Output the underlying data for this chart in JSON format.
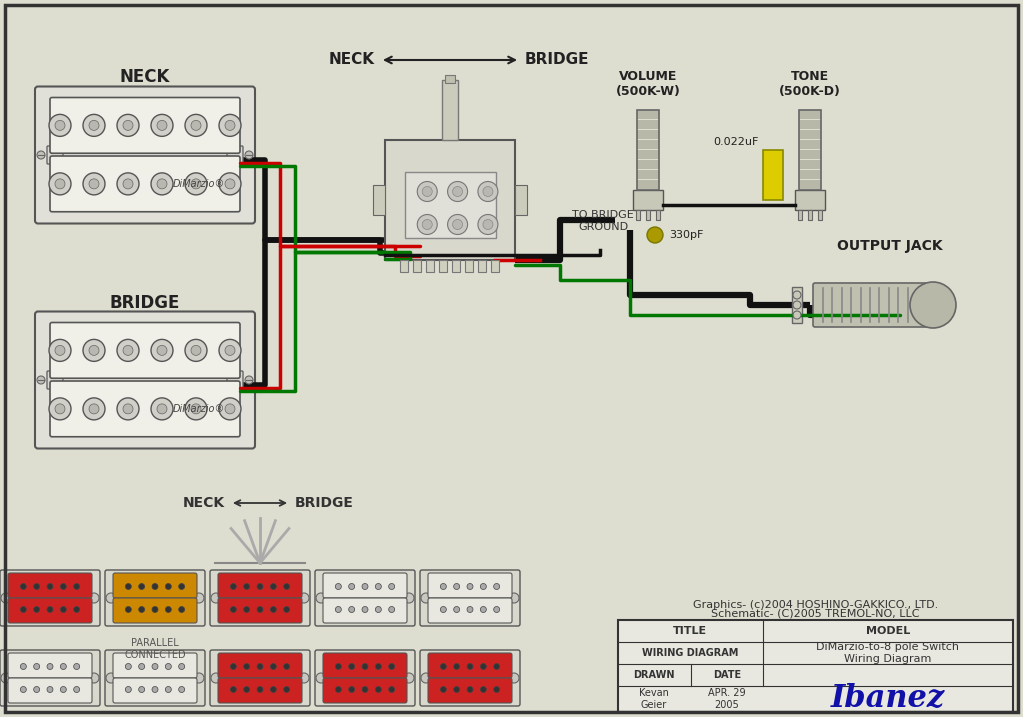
{
  "bg_color": "#ddddd0",
  "border_color": "#333333",
  "diagram_title": "DiMarzio-to-8 pole Switch\nWiring Diagram",
  "credits_line1": "Graphics- (c)2004 HOSHINO-GAKKICO., LTD.",
  "credits_line2": "Schematic- (C)2005 TREMOL-NO, LLC",
  "neck_label": "NECK",
  "bridge_label": "BRIDGE",
  "volume_label": "VOLUME\n(500K-W)",
  "tone_label": "TONE\n(500K-D)",
  "to_bridge_ground": "TO BRIDGE\nGROUND",
  "output_jack_label": "OUTPUT JACK",
  "cap_label": "0.022uF",
  "cap2_label": "330pF",
  "parallel_connected": "PARALLEL\nCONNECTED",
  "neck_bridge_arrow": "NECK ←→ BRIDGE",
  "switch_bg": "#e8e8e0",
  "pot_body_color": "#ccccbb",
  "coil_face": "#f0f0e8",
  "mount_color": "#e0e0d8",
  "wire_black": "#111111",
  "wire_red": "#cc0000",
  "wire_green": "#007700",
  "wire_gray": "#aaaaaa",
  "cap_yellow": "#ddcc00",
  "cap_small_color": "#bbaa00",
  "pos1_top": "#cc2222",
  "pos1_bot": "#cc2222",
  "pos2_top": "#cc8800",
  "pos2_bot": "#cc8800",
  "pos3_top": "#cc2222",
  "pos3_bot": "#cc2222",
  "pos4_top": "#e8e8e0",
  "pos4_bot": "#e8e8e0",
  "pos5_top": "#e8e8e0",
  "pos5_bot": "#e8e8e0",
  "row2_pos1_top": "#e8e8e0",
  "row2_pos1_bot": "#e8e8e0",
  "row2_pos2_top": "#e8e8e0",
  "row2_pos2_bot": "#e8e8e0",
  "row2_pos3_top": "#cc2222",
  "row2_pos3_bot": "#cc2222",
  "row2_pos4_top": "#cc2222",
  "row2_pos4_bot": "#cc2222",
  "row2_pos5_top": "#cc2222",
  "row2_pos5_bot": "#cc2222"
}
